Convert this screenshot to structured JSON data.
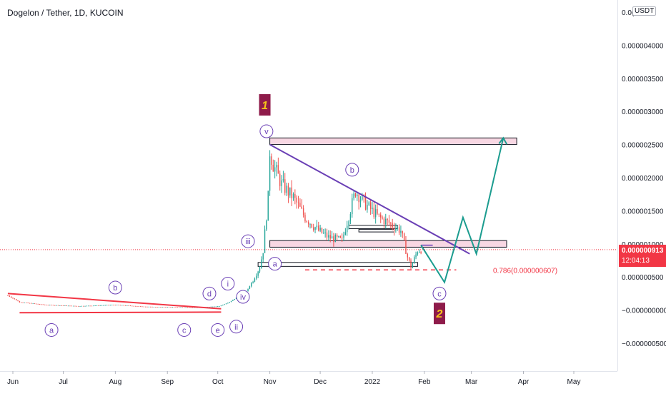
{
  "header": {
    "title": "Dogelon / Tether, 1D, KUCOIN"
  },
  "price_axis": {
    "currency_label": "USDT",
    "ticks": [
      {
        "value": 4.5e-06,
        "label": "0.0("
      },
      {
        "value": 4e-06,
        "label": "0.000004000"
      },
      {
        "value": 3.5e-06,
        "label": "0.000003500"
      },
      {
        "value": 3e-06,
        "label": "0.000003000"
      },
      {
        "value": 2.5e-06,
        "label": "0.000002500"
      },
      {
        "value": 2e-06,
        "label": "0.000002000"
      },
      {
        "value": 1.5e-06,
        "label": "0.000001500"
      },
      {
        "value": 1e-06,
        "label": "0.000001000"
      },
      {
        "value": 5e-07,
        "label": "0.000000500"
      },
      {
        "value": 0.0,
        "label": "−0.000000000"
      },
      {
        "value": -5e-07,
        "label": "−0.000000500"
      }
    ],
    "current_price": "0.000000913",
    "countdown": "12:04:13",
    "current_color": "#f23645"
  },
  "time_axis": {
    "labels": [
      {
        "label": "Jun",
        "date": "2021-06-01"
      },
      {
        "label": "Jul",
        "date": "2021-07-01"
      },
      {
        "label": "Aug",
        "date": "2021-08-01"
      },
      {
        "label": "Sep",
        "date": "2021-09-01"
      },
      {
        "label": "Oct",
        "date": "2021-10-01"
      },
      {
        "label": "Nov",
        "date": "2021-11-01"
      },
      {
        "label": "Dec",
        "date": "2021-12-01"
      },
      {
        "label": "2022",
        "date": "2022-01-01"
      },
      {
        "label": "Feb",
        "date": "2022-02-01"
      },
      {
        "label": "Mar",
        "date": "2022-03-01"
      },
      {
        "label": "Apr",
        "date": "2022-04-01"
      },
      {
        "label": "May",
        "date": "2022-05-01"
      }
    ]
  },
  "annotations": {
    "fib_label": "0.786(0.000000607)",
    "wave_labels": [
      "a",
      "b",
      "c",
      "d",
      "e",
      "i",
      "ii",
      "iii",
      "iv",
      "v",
      "a",
      "b",
      "c"
    ],
    "major_labels": [
      "1",
      "2"
    ]
  },
  "chart_data": {
    "type": "candlestick",
    "title": "Dogelon / Tether, 1D, KUCOIN",
    "x_axis": "date",
    "x_range": [
      "2021-05-28",
      "2022-05-31"
    ],
    "y_range": [
      -7.5e-07,
      4.6e-06
    ],
    "y_unit": "USDT",
    "price_path": [
      {
        "date": "2021-05-29",
        "price": 2.2e-07
      },
      {
        "date": "2021-06-05",
        "price": 1.2e-07
      },
      {
        "date": "2021-06-20",
        "price": 8e-08
      },
      {
        "date": "2021-07-10",
        "price": 6e-08
      },
      {
        "date": "2021-08-01",
        "price": 8e-08
      },
      {
        "date": "2021-08-20",
        "price": 5e-08
      },
      {
        "date": "2021-09-20",
        "price": 4e-08
      },
      {
        "date": "2021-10-02",
        "price": 6e-08
      },
      {
        "date": "2021-10-08",
        "price": 1.2e-07
      },
      {
        "date": "2021-10-14",
        "price": 2.2e-07
      },
      {
        "date": "2021-10-18",
        "price": 2.8e-07
      },
      {
        "date": "2021-10-22",
        "price": 4.5e-07
      },
      {
        "date": "2021-10-26",
        "price": 6.5e-07
      },
      {
        "date": "2021-10-28",
        "price": 9e-07
      },
      {
        "date": "2021-10-31",
        "price": 1.7e-06
      },
      {
        "date": "2021-11-01",
        "price": 2.4e-06
      },
      {
        "date": "2021-11-03",
        "price": 2.2e-06
      },
      {
        "date": "2021-11-08",
        "price": 1.9e-06
      },
      {
        "date": "2021-11-15",
        "price": 1.7e-06
      },
      {
        "date": "2021-11-22",
        "price": 1.4e-06
      },
      {
        "date": "2021-11-30",
        "price": 1.2e-06
      },
      {
        "date": "2021-12-06",
        "price": 1.1e-06
      },
      {
        "date": "2021-12-14",
        "price": 1.05e-06
      },
      {
        "date": "2021-12-22",
        "price": 1.8e-06
      },
      {
        "date": "2021-12-28",
        "price": 1.6e-06
      },
      {
        "date": "2022-01-05",
        "price": 1.4e-06
      },
      {
        "date": "2022-01-12",
        "price": 1.3e-06
      },
      {
        "date": "2022-01-18",
        "price": 1.2e-06
      },
      {
        "date": "2022-01-22",
        "price": 8e-07
      },
      {
        "date": "2022-01-24",
        "price": 6.5e-07
      },
      {
        "date": "2022-01-28",
        "price": 9e-07
      },
      {
        "date": "2022-01-30",
        "price": 9.13e-07
      }
    ],
    "zones": [
      {
        "from": "2021-11-01",
        "to": "2022-03-28",
        "low": 2.5e-06,
        "high": 2.6e-06
      },
      {
        "from": "2021-11-01",
        "to": "2022-03-22",
        "low": 9.5e-07,
        "high": 1.05e-06
      }
    ],
    "fib_level": {
      "ratio": 0.786,
      "price": 6.07e-07
    },
    "current_price": 9.13e-07
  }
}
